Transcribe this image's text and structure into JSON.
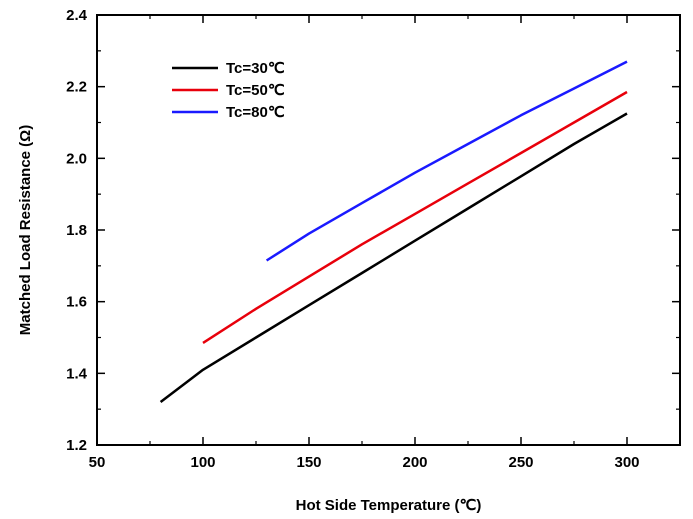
{
  "chart_data": {
    "type": "line",
    "title": "",
    "xlabel": "Hot Side Temperature (℃)",
    "ylabel": "Matched Load Resistance (Ω)",
    "xlim": [
      50,
      325
    ],
    "ylim": [
      1.2,
      2.4
    ],
    "xticks": [
      50,
      100,
      150,
      200,
      250,
      300
    ],
    "xtick_labels": [
      "50",
      "100",
      "150",
      "200",
      "250",
      "300"
    ],
    "yticks": [
      1.2,
      1.4,
      1.6,
      1.8,
      2.0,
      2.2,
      2.4
    ],
    "ytick_labels": [
      "1.2",
      "1.4",
      "1.6",
      "1.8",
      "2.0",
      "2.2",
      "2.4"
    ],
    "grid": false,
    "legend_position": "top-left",
    "series": [
      {
        "name": "Tc=30℃",
        "color": "#000000",
        "x": [
          80,
          100,
          125,
          150,
          175,
          200,
          225,
          250,
          275,
          300
        ],
        "y": [
          1.32,
          1.41,
          1.5,
          1.59,
          1.68,
          1.77,
          1.86,
          1.95,
          2.04,
          2.125
        ]
      },
      {
        "name": "Tc=50℃",
        "color": "#e8000b",
        "x": [
          100,
          125,
          150,
          175,
          200,
          225,
          250,
          275,
          300
        ],
        "y": [
          1.485,
          1.58,
          1.67,
          1.76,
          1.845,
          1.93,
          2.015,
          2.1,
          2.185
        ]
      },
      {
        "name": "Tc=80℃",
        "color": "#1a1aff",
        "x": [
          130,
          150,
          175,
          200,
          225,
          250,
          275,
          300
        ],
        "y": [
          1.715,
          1.79,
          1.875,
          1.96,
          2.04,
          2.12,
          2.195,
          2.27
        ]
      }
    ]
  }
}
